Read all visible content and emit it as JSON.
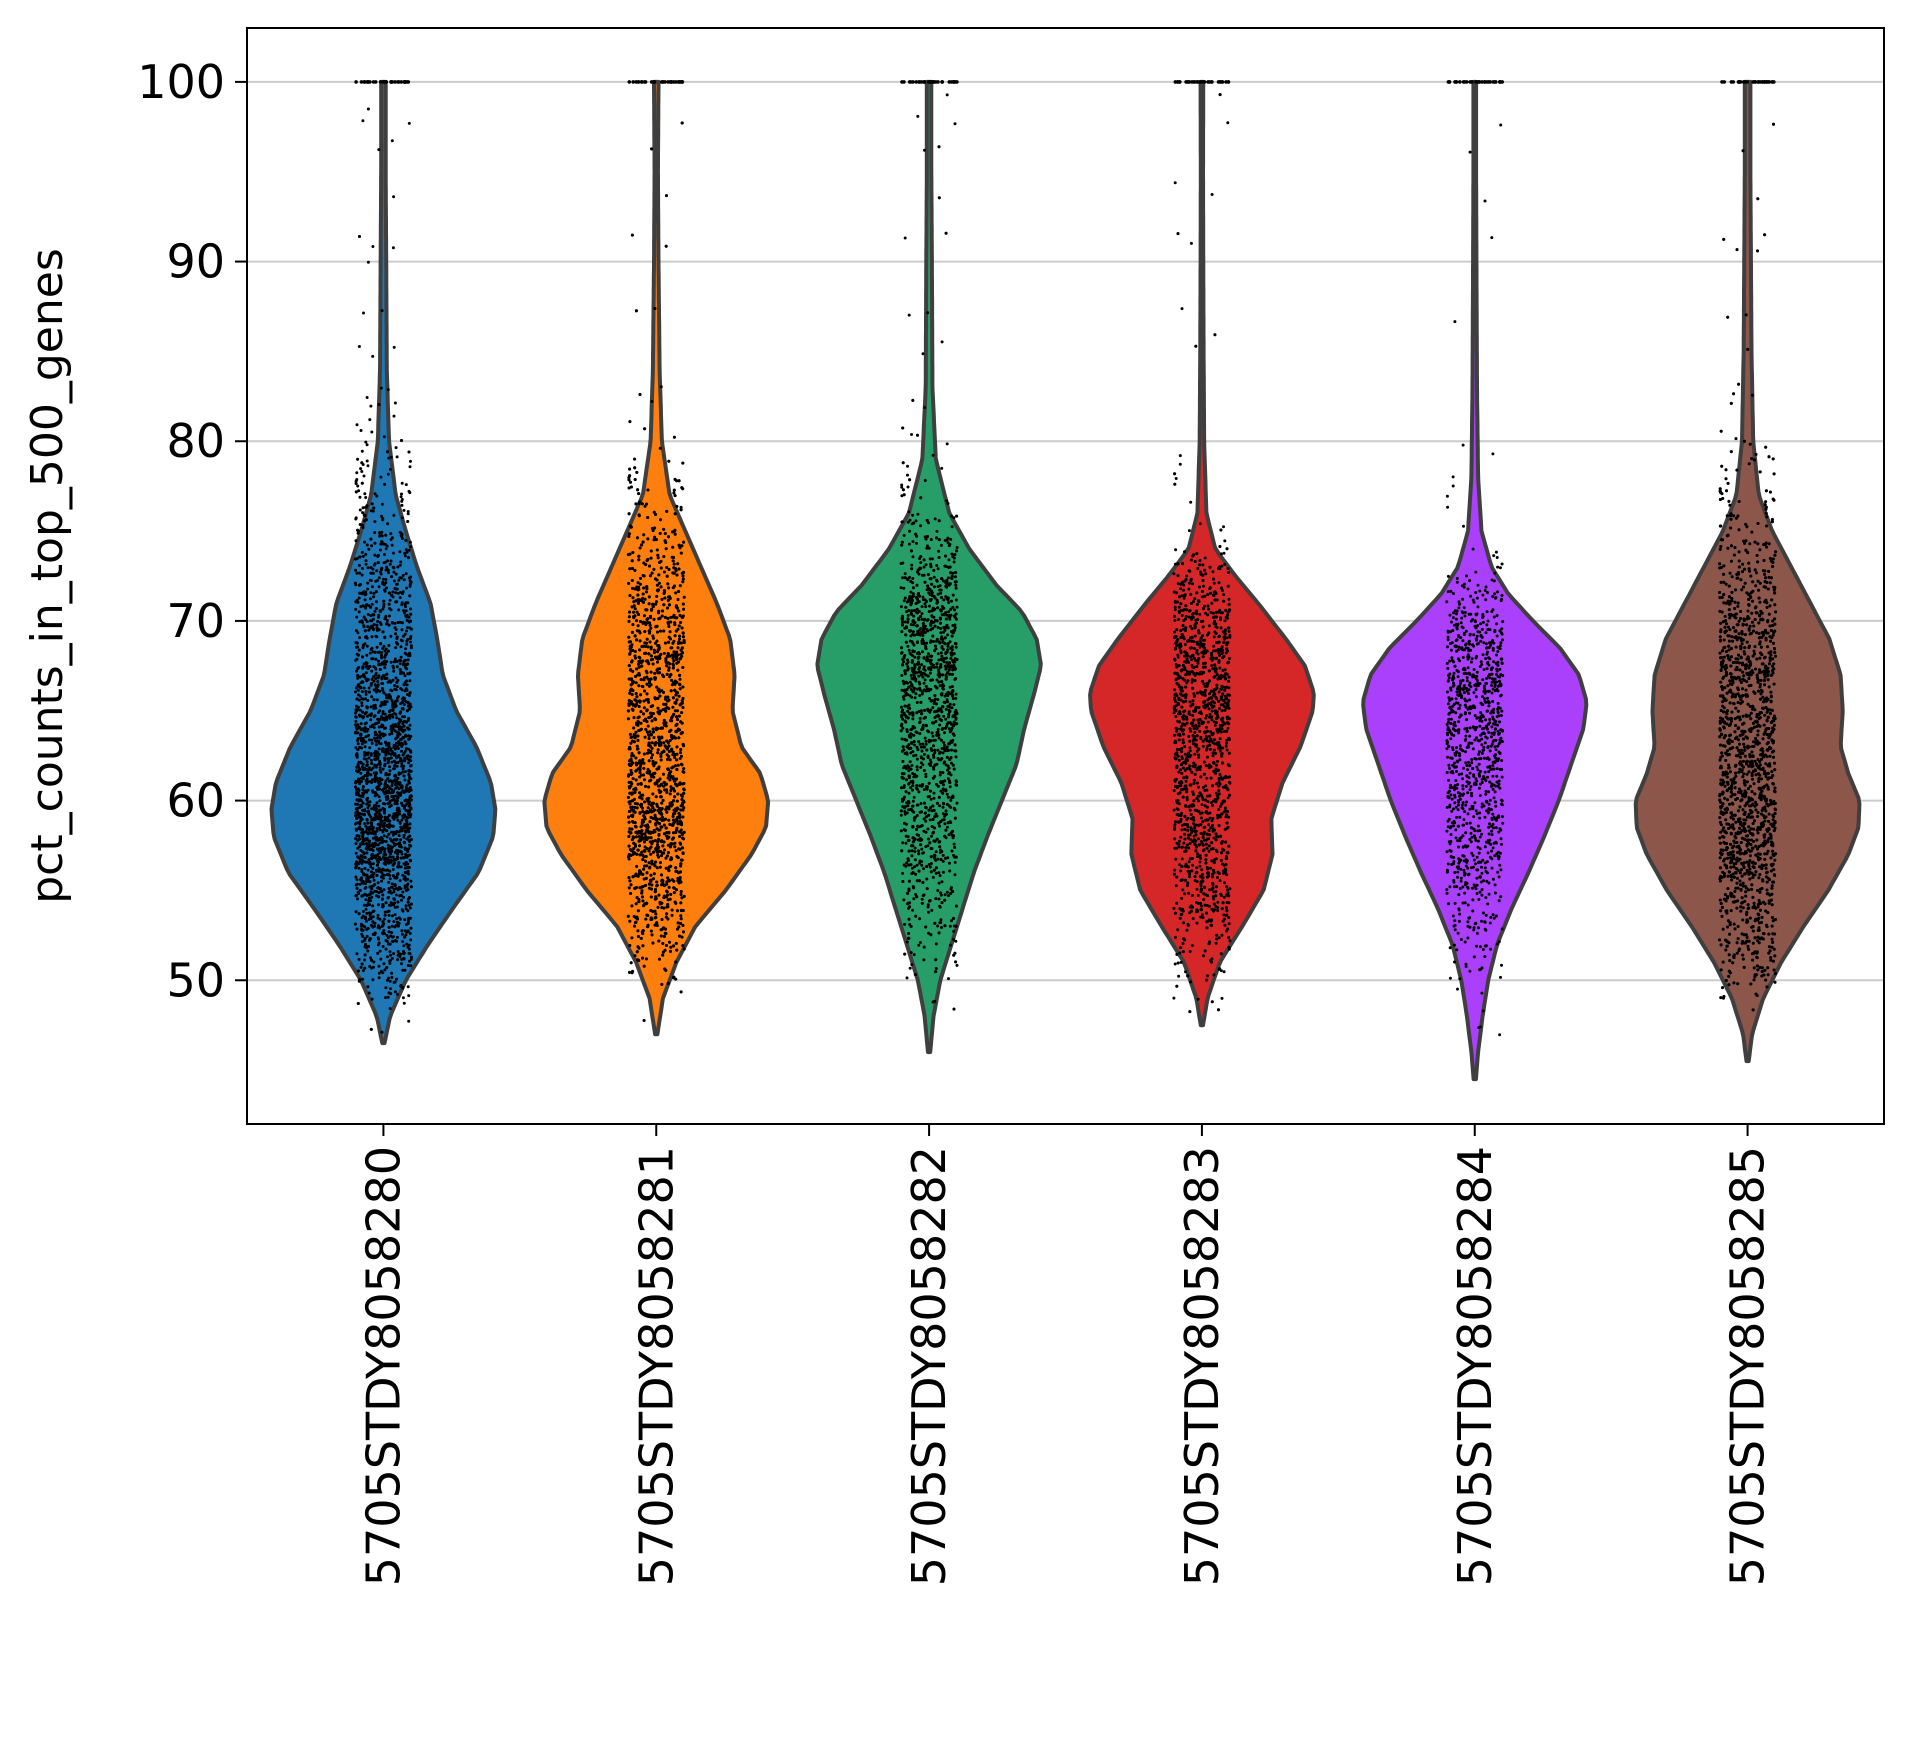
{
  "chart_data": {
    "type": "violin",
    "title": "",
    "xlabel": "",
    "ylabel": "pct_counts_in_top_500_genes",
    "ylim": [
      42,
      103
    ],
    "yticks": [
      50,
      60,
      70,
      80,
      90,
      100
    ],
    "grid": "horizontal",
    "legend": "none",
    "jitter_points": true,
    "categories": [
      "5705STDY8058280",
      "5705STDY8058281",
      "5705STDY8058282",
      "5705STDY8058283",
      "5705STDY8058284",
      "5705STDY8058285"
    ],
    "colors": [
      "#1f77b4",
      "#ff7f0e",
      "#279e68",
      "#d62728",
      "#aa40fc",
      "#8c564b"
    ],
    "series": [
      {
        "min": 46.5,
        "max": 100,
        "median": 61,
        "point_count": 2600,
        "point_spread": [
          49,
          80
        ],
        "density": [
          [
            46.5,
            0.01
          ],
          [
            48,
            0.06
          ],
          [
            50,
            0.2
          ],
          [
            52,
            0.4
          ],
          [
            54,
            0.62
          ],
          [
            56,
            0.85
          ],
          [
            58,
            0.98
          ],
          [
            59.5,
            1.0
          ],
          [
            61,
            0.96
          ],
          [
            63,
            0.83
          ],
          [
            65,
            0.65
          ],
          [
            67,
            0.53
          ],
          [
            69,
            0.48
          ],
          [
            71,
            0.42
          ],
          [
            73,
            0.3
          ],
          [
            75,
            0.2
          ],
          [
            77,
            0.11
          ],
          [
            80,
            0.05
          ],
          [
            84,
            0.03
          ],
          [
            90,
            0.025
          ],
          [
            95,
            0.02
          ],
          [
            100,
            0.02
          ]
        ]
      },
      {
        "min": 47,
        "max": 100,
        "median": 62,
        "point_count": 3200,
        "point_spread": [
          50,
          79
        ],
        "density": [
          [
            47,
            0.01
          ],
          [
            49,
            0.06
          ],
          [
            51,
            0.18
          ],
          [
            53,
            0.35
          ],
          [
            55,
            0.62
          ],
          [
            57,
            0.85
          ],
          [
            58.5,
            0.98
          ],
          [
            60,
            1.0
          ],
          [
            61.5,
            0.93
          ],
          [
            63,
            0.76
          ],
          [
            65,
            0.68
          ],
          [
            67,
            0.7
          ],
          [
            69,
            0.66
          ],
          [
            71,
            0.54
          ],
          [
            73,
            0.4
          ],
          [
            75,
            0.26
          ],
          [
            77,
            0.12
          ],
          [
            80,
            0.05
          ],
          [
            84,
            0.03
          ],
          [
            90,
            0.02
          ],
          [
            95,
            0.015
          ],
          [
            100,
            0.02
          ]
        ]
      },
      {
        "min": 46,
        "max": 100,
        "median": 66,
        "point_count": 1900,
        "point_spread": [
          50,
          76
        ],
        "density": [
          [
            46,
            0.01
          ],
          [
            48,
            0.04
          ],
          [
            50,
            0.1
          ],
          [
            52,
            0.2
          ],
          [
            54,
            0.3
          ],
          [
            56,
            0.4
          ],
          [
            58,
            0.52
          ],
          [
            60,
            0.65
          ],
          [
            62,
            0.78
          ],
          [
            64,
            0.85
          ],
          [
            66,
            0.94
          ],
          [
            67.5,
            1.0
          ],
          [
            69,
            0.96
          ],
          [
            70.5,
            0.83
          ],
          [
            72,
            0.6
          ],
          [
            74,
            0.36
          ],
          [
            76,
            0.18
          ],
          [
            79,
            0.06
          ],
          [
            83,
            0.03
          ],
          [
            90,
            0.025
          ],
          [
            95,
            0.02
          ],
          [
            100,
            0.02
          ]
        ]
      },
      {
        "min": 47.5,
        "max": 100,
        "median": 63,
        "point_count": 1900,
        "point_spread": [
          48,
          74
        ],
        "density": [
          [
            47.5,
            0.01
          ],
          [
            49,
            0.05
          ],
          [
            51,
            0.16
          ],
          [
            53,
            0.36
          ],
          [
            55,
            0.55
          ],
          [
            57,
            0.63
          ],
          [
            59,
            0.62
          ],
          [
            61,
            0.72
          ],
          [
            63,
            0.88
          ],
          [
            65,
            0.99
          ],
          [
            66,
            1.0
          ],
          [
            67.5,
            0.92
          ],
          [
            69,
            0.75
          ],
          [
            71,
            0.5
          ],
          [
            72.5,
            0.3
          ],
          [
            74,
            0.12
          ],
          [
            76,
            0.04
          ],
          [
            80,
            0.02
          ],
          [
            85,
            0.015
          ],
          [
            90,
            0.012
          ],
          [
            95,
            0.01
          ],
          [
            100,
            0.012
          ]
        ]
      },
      {
        "min": 44.5,
        "max": 100,
        "median": 63,
        "point_count": 1100,
        "point_spread": [
          50,
          73
        ],
        "density": [
          [
            44.5,
            0.01
          ],
          [
            46,
            0.03
          ],
          [
            48,
            0.07
          ],
          [
            50,
            0.12
          ],
          [
            52,
            0.2
          ],
          [
            54,
            0.33
          ],
          [
            56,
            0.48
          ],
          [
            58,
            0.62
          ],
          [
            60,
            0.75
          ],
          [
            62,
            0.86
          ],
          [
            64,
            0.97
          ],
          [
            65.5,
            1.0
          ],
          [
            67,
            0.93
          ],
          [
            68.5,
            0.76
          ],
          [
            70,
            0.52
          ],
          [
            71.5,
            0.3
          ],
          [
            73,
            0.15
          ],
          [
            75,
            0.06
          ],
          [
            78,
            0.03
          ],
          [
            83,
            0.02
          ],
          [
            90,
            0.015
          ],
          [
            95,
            0.012
          ],
          [
            100,
            0.012
          ]
        ]
      },
      {
        "min": 45.5,
        "max": 100,
        "median": 63,
        "point_count": 3200,
        "point_spread": [
          49,
          80
        ],
        "density": [
          [
            45.5,
            0.01
          ],
          [
            47,
            0.04
          ],
          [
            49,
            0.14
          ],
          [
            51,
            0.3
          ],
          [
            53,
            0.5
          ],
          [
            55,
            0.72
          ],
          [
            57,
            0.9
          ],
          [
            58.5,
            0.99
          ],
          [
            60,
            1.0
          ],
          [
            61.5,
            0.9
          ],
          [
            63,
            0.83
          ],
          [
            65,
            0.85
          ],
          [
            67,
            0.83
          ],
          [
            69,
            0.73
          ],
          [
            71,
            0.56
          ],
          [
            73,
            0.39
          ],
          [
            75,
            0.22
          ],
          [
            77,
            0.1
          ],
          [
            80,
            0.05
          ],
          [
            85,
            0.035
          ],
          [
            90,
            0.03
          ],
          [
            95,
            0.025
          ],
          [
            100,
            0.025
          ]
        ]
      }
    ]
  }
}
